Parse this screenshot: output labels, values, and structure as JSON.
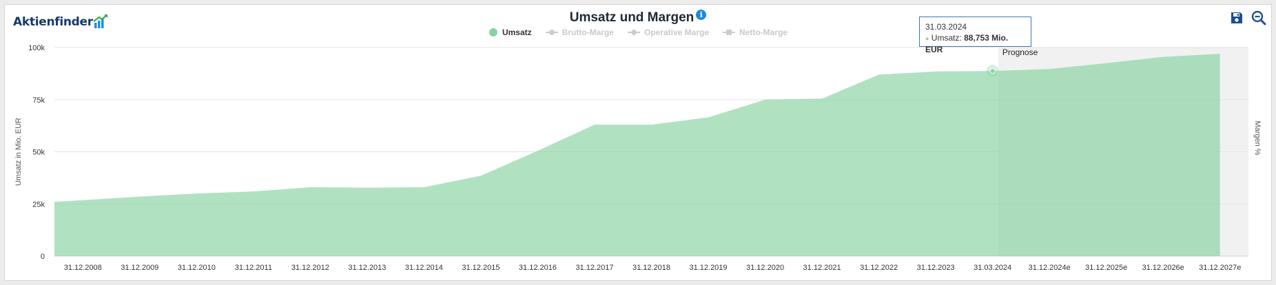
{
  "brand": {
    "logo_text": "Aktienfinder"
  },
  "toolbar": {
    "save_icon": "save-icon",
    "zoom_icon": "zoom-out-icon"
  },
  "chart_data": {
    "type": "area",
    "title": "Umsatz und Margen",
    "info_icon": "i",
    "legend": [
      {
        "label": "Umsatz",
        "active": true,
        "marker": "circle",
        "color": "#86d3a1"
      },
      {
        "label": "Brutto-Marge",
        "active": false,
        "marker": "line-circle",
        "color": "#cccccc"
      },
      {
        "label": "Operative Marge",
        "active": false,
        "marker": "line-diamond",
        "color": "#cccccc"
      },
      {
        "label": "Netto-Marge",
        "active": false,
        "marker": "line-square",
        "color": "#cccccc"
      }
    ],
    "ylabel": "Umsatz in Mio. EUR",
    "y2label": "Margen %",
    "yticks": [
      "0",
      "25k",
      "50k",
      "75k",
      "100k"
    ],
    "ylim": [
      0,
      100000
    ],
    "categories": [
      "31.12.2008",
      "31.12.2009",
      "31.12.2010",
      "31.12.2011",
      "31.12.2012",
      "31.12.2013",
      "31.12.2014",
      "31.12.2015",
      "31.12.2016",
      "31.12.2017",
      "31.12.2018",
      "31.12.2019",
      "31.12.2020",
      "31.12.2021",
      "31.12.2022",
      "31.12.2023",
      "31.03.2024",
      "31.12.2024e",
      "31.12.2025e",
      "31.12.2026e",
      "31.12.2027e"
    ],
    "series": [
      {
        "name": "Umsatz",
        "color": "#86d3a1",
        "values": [
          26000,
          28500,
          30000,
          31000,
          33000,
          32800,
          33000,
          38500,
          50500,
          63000,
          63000,
          66500,
          75000,
          75500,
          87000,
          88500,
          88753,
          89700,
          92500,
          95500,
          97000
        ]
      }
    ],
    "forecast": {
      "label": "Prognose",
      "start_category": "31.03.2024",
      "color": "#f1f1f1"
    },
    "tooltip": {
      "date": "31.03.2024",
      "series": "Umsatz",
      "value_text": "88,753 Mio. EUR"
    },
    "grid": true
  }
}
